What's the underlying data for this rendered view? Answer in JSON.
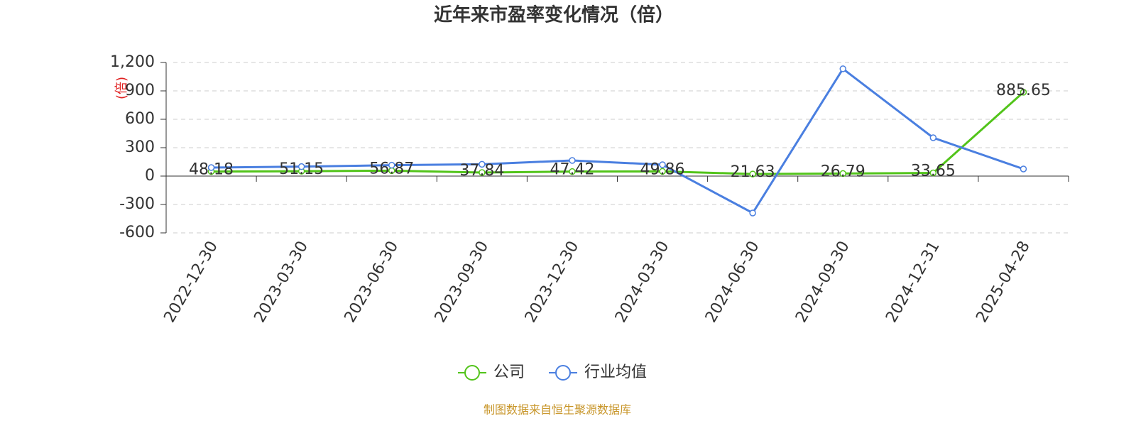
{
  "chart_data": {
    "type": "line",
    "title": "近年来市盈率变化情况（倍）",
    "y_label": "(倍)",
    "x": [
      "2022-12-30",
      "2023-03-30",
      "2023-06-30",
      "2023-09-30",
      "2023-12-30",
      "2024-03-30",
      "2024-06-30",
      "2024-09-30",
      "2024-12-31",
      "2025-04-28"
    ],
    "series": [
      {
        "name": "公司",
        "color": "#52c41a",
        "values": [
          48.18,
          51.15,
          56.87,
          37.84,
          47.42,
          49.86,
          21.63,
          26.79,
          33.65,
          885.65
        ]
      },
      {
        "name": "行业均值",
        "color": "#4a7fe0",
        "values": [
          90,
          100,
          115,
          125,
          165,
          120,
          -390,
          1133,
          405,
          75
        ]
      }
    ],
    "ylim": [
      -600,
      1200
    ],
    "yticks": [
      {
        "value": 1200,
        "label": "1,200"
      },
      900,
      600,
      300,
      0,
      -300,
      -600
    ],
    "grid": true,
    "source": "制图数据来自恒生聚源数据库"
  }
}
